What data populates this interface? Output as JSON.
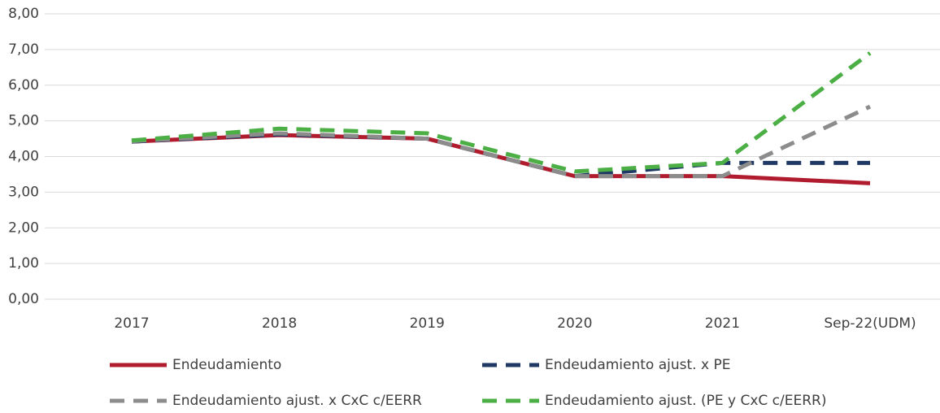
{
  "chart_data": {
    "type": "line",
    "categories": [
      "2017",
      "2018",
      "2019",
      "2020",
      "2021",
      "Sep-22(UDM)"
    ],
    "series": [
      {
        "name": "Endeudamiento",
        "color": "#b01c2e",
        "dash": false,
        "values": [
          4.42,
          4.6,
          4.5,
          3.45,
          3.45,
          3.25
        ]
      },
      {
        "name": "Endeudamiento ajust. x PE",
        "color": "#1f3864",
        "dash": true,
        "values": [
          4.42,
          4.62,
          4.5,
          3.45,
          3.82,
          3.82
        ]
      },
      {
        "name": "Endeudamiento ajust. x CxC c/EERR",
        "color": "#8c8c8c",
        "dash": true,
        "values": [
          4.43,
          4.65,
          4.5,
          3.45,
          3.45,
          5.4
        ]
      },
      {
        "name": "Endeudamiento ajust. (PE y CxC c/EERR)",
        "color": "#4caf45",
        "dash": true,
        "values": [
          4.45,
          4.78,
          4.65,
          3.58,
          3.82,
          6.9
        ]
      }
    ],
    "ylim": [
      0,
      8
    ],
    "yticks": [
      {
        "value": 0,
        "label": "0,00"
      },
      {
        "value": 1,
        "label": "1,00"
      },
      {
        "value": 2,
        "label": "2,00"
      },
      {
        "value": 3,
        "label": "3,00"
      },
      {
        "value": 4,
        "label": "4,00"
      },
      {
        "value": 5,
        "label": "5,00"
      },
      {
        "value": 6,
        "label": "6,00"
      },
      {
        "value": 7,
        "label": "7,00"
      },
      {
        "value": 8,
        "label": "8,00"
      }
    ],
    "grid": true
  }
}
